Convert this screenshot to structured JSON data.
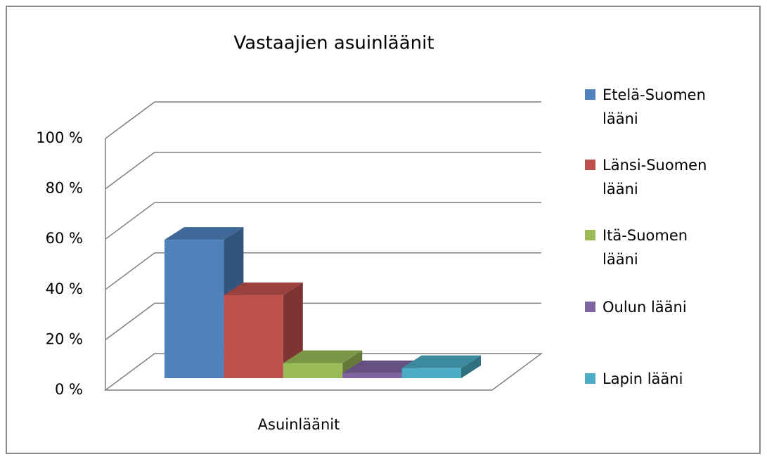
{
  "chart_data": {
    "type": "bar3d",
    "title": "Vastaajien asuinläänit",
    "x_label": "Asuinläänit",
    "categories": [
      "Asuinläänit"
    ],
    "series": [
      {
        "name": "Etelä-Suomen lääni",
        "color": "#4f81bd",
        "values": [
          55
        ]
      },
      {
        "name": "Länsi-Suomen lääni",
        "color": "#c0504d",
        "values": [
          33
        ]
      },
      {
        "name": "Itä-Suomen lääni",
        "color": "#9bbb59",
        "values": [
          6
        ]
      },
      {
        "name": "Oulun lääni",
        "color": "#8064a2",
        "values": [
          2
        ]
      },
      {
        "name": "Lapin lääni",
        "color": "#4bacc6",
        "values": [
          4
        ]
      }
    ],
    "ylim": [
      0,
      100
    ],
    "yticks": [
      {
        "value": 0,
        "label": "0 %"
      },
      {
        "value": 20,
        "label": "20 %"
      },
      {
        "value": 40,
        "label": "40 %"
      },
      {
        "value": 60,
        "label": "60 %"
      },
      {
        "value": 80,
        "label": "80 %"
      },
      {
        "value": 100,
        "label": "100 %"
      }
    ],
    "grid": true,
    "legend": "right"
  }
}
